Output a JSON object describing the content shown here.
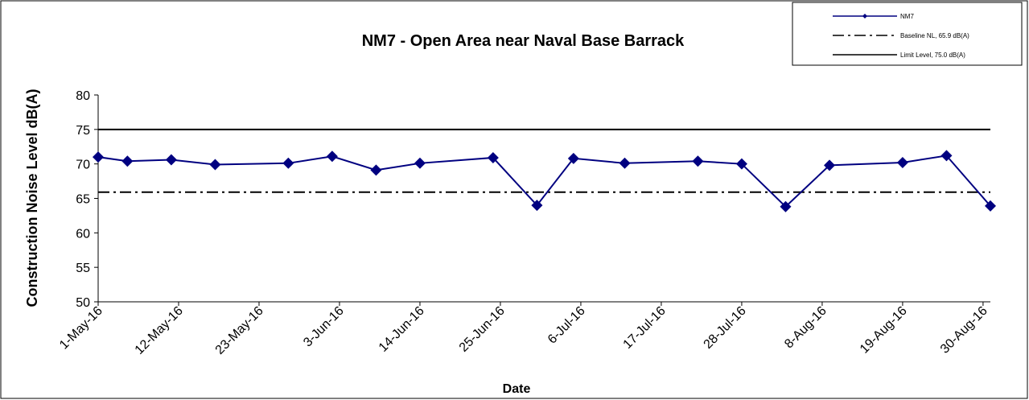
{
  "chart_data": {
    "type": "line",
    "title": "NM7 -  Open Area near Naval Base Barrack",
    "x_label": "Date",
    "y_label": "Construction Noise Level  dB(A)",
    "x": [
      "2016-05-01",
      "2016-05-05",
      "2016-05-11",
      "2016-05-17",
      "2016-05-27",
      "2016-06-02",
      "2016-06-08",
      "2016-06-14",
      "2016-06-24",
      "2016-06-30",
      "2016-07-05",
      "2016-07-12",
      "2016-07-22",
      "2016-07-28",
      "2016-08-03",
      "2016-08-09",
      "2016-08-19",
      "2016-08-25",
      "2016-08-31"
    ],
    "series": [
      {
        "name": "NM7",
        "color": "#000080",
        "values": [
          71.0,
          70.4,
          70.6,
          69.9,
          70.1,
          71.1,
          69.1,
          70.1,
          70.9,
          64.0,
          70.8,
          70.1,
          70.4,
          70.0,
          63.8,
          69.8,
          70.2,
          71.2,
          63.9
        ]
      }
    ],
    "reference_lines": [
      {
        "name": "Baseline NL, 65.9 dB(A)",
        "value": 65.9,
        "style": "dashdot",
        "color": "#000000"
      },
      {
        "name": "Limit Level, 75.0 dB(A)",
        "value": 75.0,
        "style": "solid",
        "color": "#000000"
      }
    ],
    "xlim": [
      "2016-05-01",
      "2016-08-31"
    ],
    "xticks": [
      {
        "value": "2016-05-01",
        "label": "1-May-16"
      },
      {
        "value": "2016-05-12",
        "label": "12-May-16"
      },
      {
        "value": "2016-05-23",
        "label": "23-May-16"
      },
      {
        "value": "2016-06-03",
        "label": "3-Jun-16"
      },
      {
        "value": "2016-06-14",
        "label": "14-Jun-16"
      },
      {
        "value": "2016-06-25",
        "label": "25-Jun-16"
      },
      {
        "value": "2016-07-06",
        "label": "6-Jul-16"
      },
      {
        "value": "2016-07-17",
        "label": "17-Jul-16"
      },
      {
        "value": "2016-07-28",
        "label": "28-Jul-16"
      },
      {
        "value": "2016-08-08",
        "label": "8-Aug-16"
      },
      {
        "value": "2016-08-19",
        "label": "19-Aug-16"
      },
      {
        "value": "2016-08-30",
        "label": "30-Aug-16"
      }
    ],
    "ylim": [
      50,
      80
    ],
    "yticks": [
      50,
      55,
      60,
      65,
      70,
      75,
      80
    ],
    "grid": false,
    "legend": "top-right"
  }
}
